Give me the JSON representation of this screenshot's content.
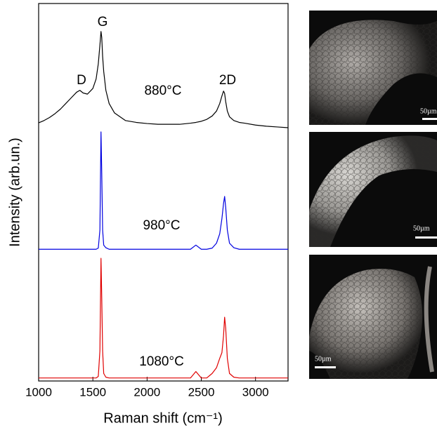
{
  "chart_data": {
    "type": "line",
    "x_label": "Raman shift (cm⁻¹)",
    "y_label": "Intensity (arb.un.)",
    "xlim": [
      1000,
      3300
    ],
    "ylim": [
      0,
      100
    ],
    "xticks": [
      1000,
      1500,
      2000,
      2500,
      3000
    ],
    "x": [
      1000,
      1050,
      1100,
      1150,
      1200,
      1250,
      1300,
      1350,
      1380,
      1410,
      1450,
      1500,
      1530,
      1550,
      1565,
      1575,
      1582,
      1590,
      1600,
      1620,
      1650,
      1700,
      1800,
      1900,
      2000,
      2100,
      2200,
      2300,
      2400,
      2450,
      2500,
      2550,
      2600,
      2640,
      2670,
      2690,
      2705,
      2715,
      2725,
      2740,
      2760,
      2800,
      2850,
      2900,
      3000,
      3100,
      3200,
      3300
    ],
    "series": [
      {
        "name": "880°C",
        "color": "#000000",
        "values": [
          68.4,
          69,
          69.8,
          70.8,
          72,
          73.5,
          75,
          76.5,
          77,
          76.3,
          76,
          77.5,
          80,
          84,
          89,
          92.6,
          91,
          86,
          82,
          77,
          73.5,
          71,
          69,
          68.5,
          68.2,
          68,
          68,
          68,
          68.3,
          68.5,
          68.8,
          69.3,
          70.2,
          71.5,
          73.5,
          75.5,
          76.8,
          76.2,
          74,
          71.5,
          70,
          69,
          68.5,
          68.3,
          67.8,
          67.5,
          67.3,
          67.1
        ]
      },
      {
        "name": "980°C",
        "color": "#0000e0",
        "values": [
          34.9,
          34.9,
          34.9,
          34.9,
          34.9,
          34.9,
          34.9,
          34.9,
          34.9,
          34.9,
          34.9,
          34.9,
          34.9,
          35.2,
          40,
          66,
          55,
          40,
          36,
          35.3,
          34.9,
          34.9,
          34.9,
          34.9,
          34.9,
          34.9,
          34.9,
          34.9,
          34.9,
          36,
          34.9,
          34.9,
          35.2,
          36.5,
          39,
          43,
          47,
          48.9,
          46,
          40,
          36.5,
          35.3,
          34.9,
          34.9,
          34.9,
          34.9,
          34.9,
          34.9
        ]
      },
      {
        "name": "1080°C",
        "color": "#e00000",
        "values": [
          0.8,
          0.8,
          0.8,
          0.8,
          0.8,
          0.8,
          0.8,
          0.8,
          0.8,
          0.8,
          0.8,
          0.8,
          0.8,
          1.2,
          8,
          32.5,
          22,
          8,
          2,
          1,
          0.8,
          0.8,
          0.8,
          0.8,
          0.8,
          0.8,
          0.8,
          0.8,
          0.8,
          2.5,
          0.8,
          0.8,
          2,
          3.5,
          6,
          7.5,
          12,
          16.9,
          14,
          6,
          2,
          1,
          0.8,
          0.8,
          0.8,
          0.8,
          0.8,
          0.8
        ]
      }
    ],
    "annotations": [
      "D",
      "G",
      "2D"
    ],
    "images": [
      {
        "scale_label": "50µm"
      },
      {
        "scale_label": "50µm"
      },
      {
        "scale_label": "50µm"
      }
    ]
  }
}
